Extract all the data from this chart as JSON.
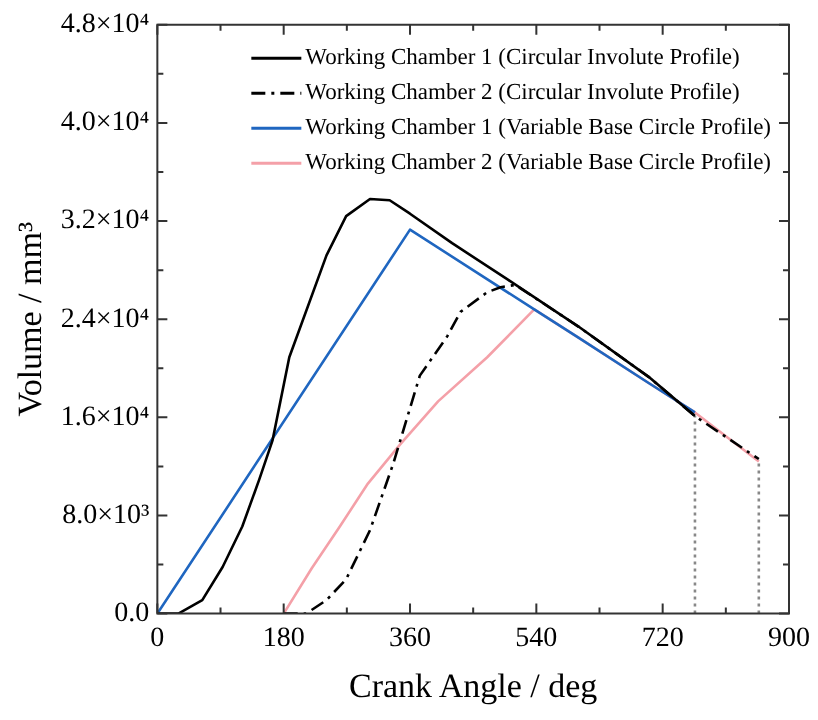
{
  "chart_data": {
    "type": "line",
    "xlabel": "Crank Angle / deg",
    "ylabel": "Volume / mm³",
    "legend": "top right",
    "grid": false,
    "marker": "none",
    "xlim": [
      0,
      900
    ],
    "ylim": [
      0,
      48000
    ],
    "xticks": [
      0,
      {
        "value": 90,
        "label": null
      },
      180,
      {
        "value": 270,
        "label": null
      },
      360,
      {
        "value": 450,
        "label": null
      },
      540,
      {
        "value": 630,
        "label": null
      },
      720,
      {
        "value": 810,
        "label": null
      },
      900
    ],
    "yticks": [
      {
        "value": 0,
        "label": "0.0"
      },
      {
        "value": 4000,
        "label": null
      },
      {
        "value": 8000,
        "label": "8.0×10³"
      },
      {
        "value": 12000,
        "label": null
      },
      {
        "value": 16000,
        "label": "1.6×10⁴"
      },
      {
        "value": 20000,
        "label": null
      },
      {
        "value": 24000,
        "label": "2.4×10⁴"
      },
      {
        "value": 28000,
        "label": null
      },
      {
        "value": 32000,
        "label": "3.2×10⁴"
      },
      {
        "value": 36000,
        "label": null
      },
      {
        "value": 40000,
        "label": "4.0×10⁴"
      },
      {
        "value": 44000,
        "label": null
      },
      {
        "value": 48000,
        "label": "4.8×10⁴"
      }
    ],
    "series": [
      {
        "name": "Working Chamber 1 (Circular Involute Profile)",
        "color": "#000000",
        "line_style": "solid",
        "x": [
          0,
          30,
          64,
          93,
          121,
          145,
          164,
          188,
          241,
          269,
          303,
          331,
          360,
          420,
          500,
          600,
          700,
          766
        ],
        "values": [
          0,
          0,
          1100,
          3800,
          7100,
          10900,
          14100,
          20900,
          29200,
          32400,
          33800,
          33700,
          32600,
          30200,
          27200,
          23400,
          19300,
          16100
        ]
      },
      {
        "name": "Working Chamber 2 (Circular Involute Profile)",
        "color": "#000000",
        "line_style": "dashdot",
        "x": [
          180,
          212,
          241,
          269,
          303,
          336,
          374,
          413,
          432,
          470,
          489,
          510,
          600,
          700,
          766,
          857
        ],
        "values": [
          0,
          0,
          1100,
          2800,
          6800,
          12200,
          19400,
          22600,
          24600,
          26200,
          26600,
          26800,
          23400,
          19300,
          16100,
          12600
        ]
      },
      {
        "name": "Working Chamber 1 (Variable Base Circle Profile)",
        "color": "#1f66c0",
        "line_style": "solid",
        "x": [
          0,
          360,
          537,
          600,
          700,
          766
        ],
        "values": [
          0,
          31300,
          24800,
          22500,
          18800,
          16400
        ]
      },
      {
        "name": "Working Chamber 2 (Variable Base Circle Profile)",
        "color": "#f4a0a8",
        "line_style": "solid",
        "x": [
          180,
          220,
          260,
          300,
          346,
          400,
          470,
          537,
          600,
          700,
          766,
          857
        ],
        "values": [
          0,
          3700,
          7100,
          10600,
          13800,
          17300,
          20900,
          24800,
          22500,
          18800,
          16400,
          12400
        ]
      },
      {
        "color": "#888888",
        "line_style": "dotted",
        "x": [
          766,
          766
        ],
        "values": [
          0,
          16100
        ]
      },
      {
        "color": "#888888",
        "line_style": "dotted",
        "x": [
          857,
          857
        ],
        "values": [
          0,
          12400
        ]
      }
    ]
  }
}
